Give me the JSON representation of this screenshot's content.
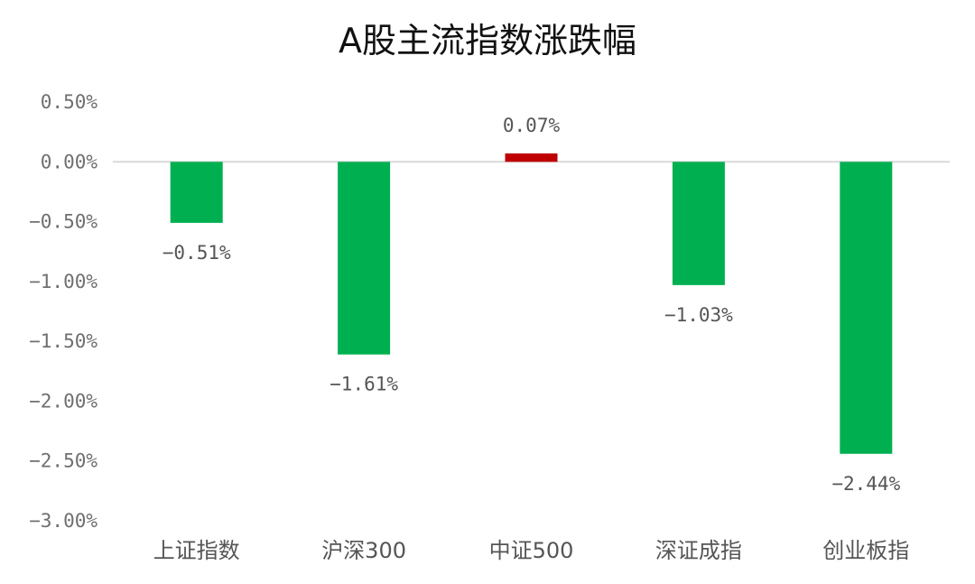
{
  "chart_data": {
    "type": "bar",
    "title": "A股主流指数涨跌幅",
    "xlabel": "",
    "ylabel": "",
    "categories": [
      "上证指数",
      "沪深300",
      "中证500",
      "深证成指",
      "创业板指"
    ],
    "values": [
      -0.51,
      -1.61,
      0.07,
      -1.03,
      -2.44
    ],
    "data_labels": [
      "−0.51%",
      "−1.61%",
      "0.07%",
      "−1.03%",
      "−2.44%"
    ],
    "ylim": [
      -3.0,
      0.5
    ],
    "y_ticks": [
      0.5,
      0.0,
      -0.5,
      -1.0,
      -1.5,
      -2.0,
      -2.5,
      -3.0
    ],
    "y_tick_labels": [
      "0.50%",
      "0.00%",
      "−0.50%",
      "−1.00%",
      "−1.50%",
      "−2.00%",
      "−2.50%",
      "−3.00%"
    ],
    "grid": false,
    "legend": "none",
    "colors": {
      "negative": "#00b050",
      "positive": "#c00000",
      "zero_line": "#d9d9d9"
    }
  }
}
